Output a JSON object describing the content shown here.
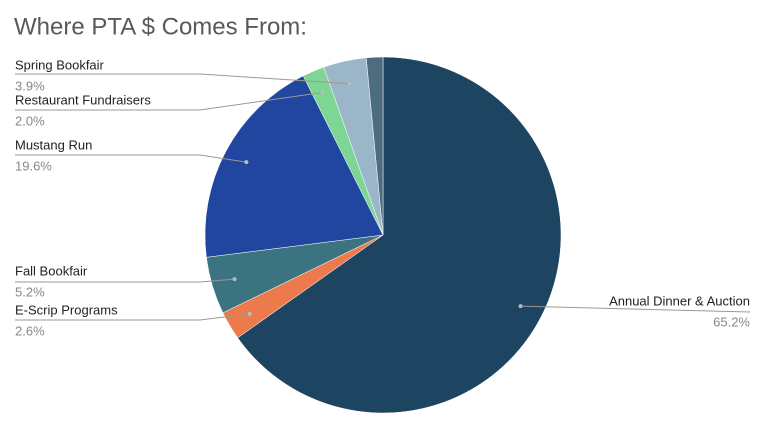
{
  "chart_data": {
    "type": "pie",
    "title": "Where PTA $ Comes From:",
    "categories": [
      "Annual Dinner & Auction",
      "E-Scrip Programs",
      "Fall Bookfair",
      "Mustang Run",
      "Restaurant Fundraisers",
      "Spring Bookfair",
      null
    ],
    "values": [
      65.2,
      2.6,
      5.2,
      19.6,
      2.0,
      3.9,
      1.5
    ],
    "value_labels": [
      "65.2%",
      "2.6%",
      "5.2%",
      "19.6%",
      "2.0%",
      "3.9%",
      null
    ],
    "colors": [
      "#1d4460",
      "#ed7a4c",
      "#3b7380",
      "#2046a0",
      "#7dd694",
      "#9bb6c8",
      "#4d6c80"
    ]
  }
}
